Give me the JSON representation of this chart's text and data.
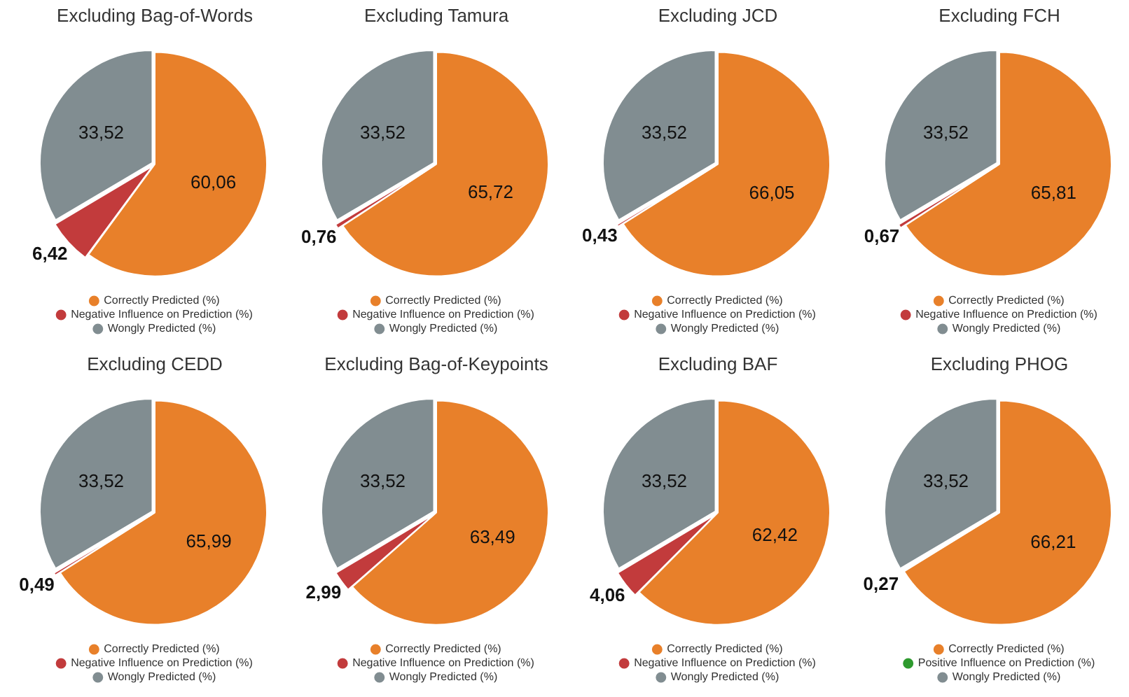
{
  "chart_data": [
    {
      "type": "pie",
      "title": "Excluding Bag-of-Words",
      "categories": [
        "Correctly Predicted (%)",
        "Negative Influence on Prediction (%)",
        "Wongly Predicted (%)"
      ],
      "values": [
        60.06,
        6.42,
        33.52
      ],
      "colors": [
        "#e8802a",
        "#c23b3c",
        "#818d91"
      ],
      "value_labels": [
        "60,06",
        "6,42",
        "33,52"
      ],
      "legend": "bottom"
    },
    {
      "type": "pie",
      "title": "Excluding Tamura",
      "categories": [
        "Correctly Predicted (%)",
        "Negative Influence on Prediction (%)",
        "Wongly Predicted (%)"
      ],
      "values": [
        65.72,
        0.76,
        33.52
      ],
      "colors": [
        "#e8802a",
        "#c23b3c",
        "#818d91"
      ],
      "value_labels": [
        "65,72",
        "0,76",
        "33,52"
      ],
      "legend": "bottom"
    },
    {
      "type": "pie",
      "title": "Excluding JCD",
      "categories": [
        "Correctly Predicted (%)",
        "Negative Influence on Prediction (%)",
        "Wongly Predicted (%)"
      ],
      "values": [
        66.05,
        0.43,
        33.52
      ],
      "colors": [
        "#e8802a",
        "#c23b3c",
        "#818d91"
      ],
      "value_labels": [
        "66,05",
        "0,43",
        "33,52"
      ],
      "legend": "bottom"
    },
    {
      "type": "pie",
      "title": "Excluding FCH",
      "categories": [
        "Correctly Predicted (%)",
        "Negative Influence on Prediction (%)",
        "Wongly Predicted (%)"
      ],
      "values": [
        65.81,
        0.67,
        33.52
      ],
      "colors": [
        "#e8802a",
        "#c23b3c",
        "#818d91"
      ],
      "value_labels": [
        "65,81",
        "0,67",
        "33,52"
      ],
      "legend": "bottom"
    },
    {
      "type": "pie",
      "title": "Excluding CEDD",
      "categories": [
        "Correctly Predicted (%)",
        "Negative Influence on Prediction (%)",
        "Wongly Predicted (%)"
      ],
      "values": [
        65.99,
        0.49,
        33.52
      ],
      "colors": [
        "#e8802a",
        "#c23b3c",
        "#818d91"
      ],
      "value_labels": [
        "65,99",
        "0,49",
        "33,52"
      ],
      "legend": "bottom"
    },
    {
      "type": "pie",
      "title": "Excluding Bag-of-Keypoints",
      "categories": [
        "Correctly Predicted (%)",
        "Negative Influence on Prediction (%)",
        "Wongly Predicted (%)"
      ],
      "values": [
        63.49,
        2.99,
        33.52
      ],
      "colors": [
        "#e8802a",
        "#c23b3c",
        "#818d91"
      ],
      "value_labels": [
        "63,49",
        "2,99",
        "33,52"
      ],
      "legend": "bottom"
    },
    {
      "type": "pie",
      "title": "Excluding BAF",
      "categories": [
        "Correctly Predicted (%)",
        "Negative Influence on Prediction (%)",
        "Wongly Predicted (%)"
      ],
      "values": [
        62.42,
        4.06,
        33.52
      ],
      "colors": [
        "#e8802a",
        "#c23b3c",
        "#818d91"
      ],
      "value_labels": [
        "62,42",
        "4,06",
        "33,52"
      ],
      "legend": "bottom"
    },
    {
      "type": "pie",
      "title": "Excluding PHOG",
      "categories": [
        "Correctly Predicted (%)",
        "Positive Influence on Prediction (%)",
        "Wongly Predicted (%)"
      ],
      "values": [
        66.21,
        0.27,
        33.52
      ],
      "colors": [
        "#e8802a",
        "#2e9a2e",
        "#818d91"
      ],
      "value_labels": [
        "66,21",
        "0,27",
        "33,52"
      ],
      "legend": "bottom"
    }
  ]
}
